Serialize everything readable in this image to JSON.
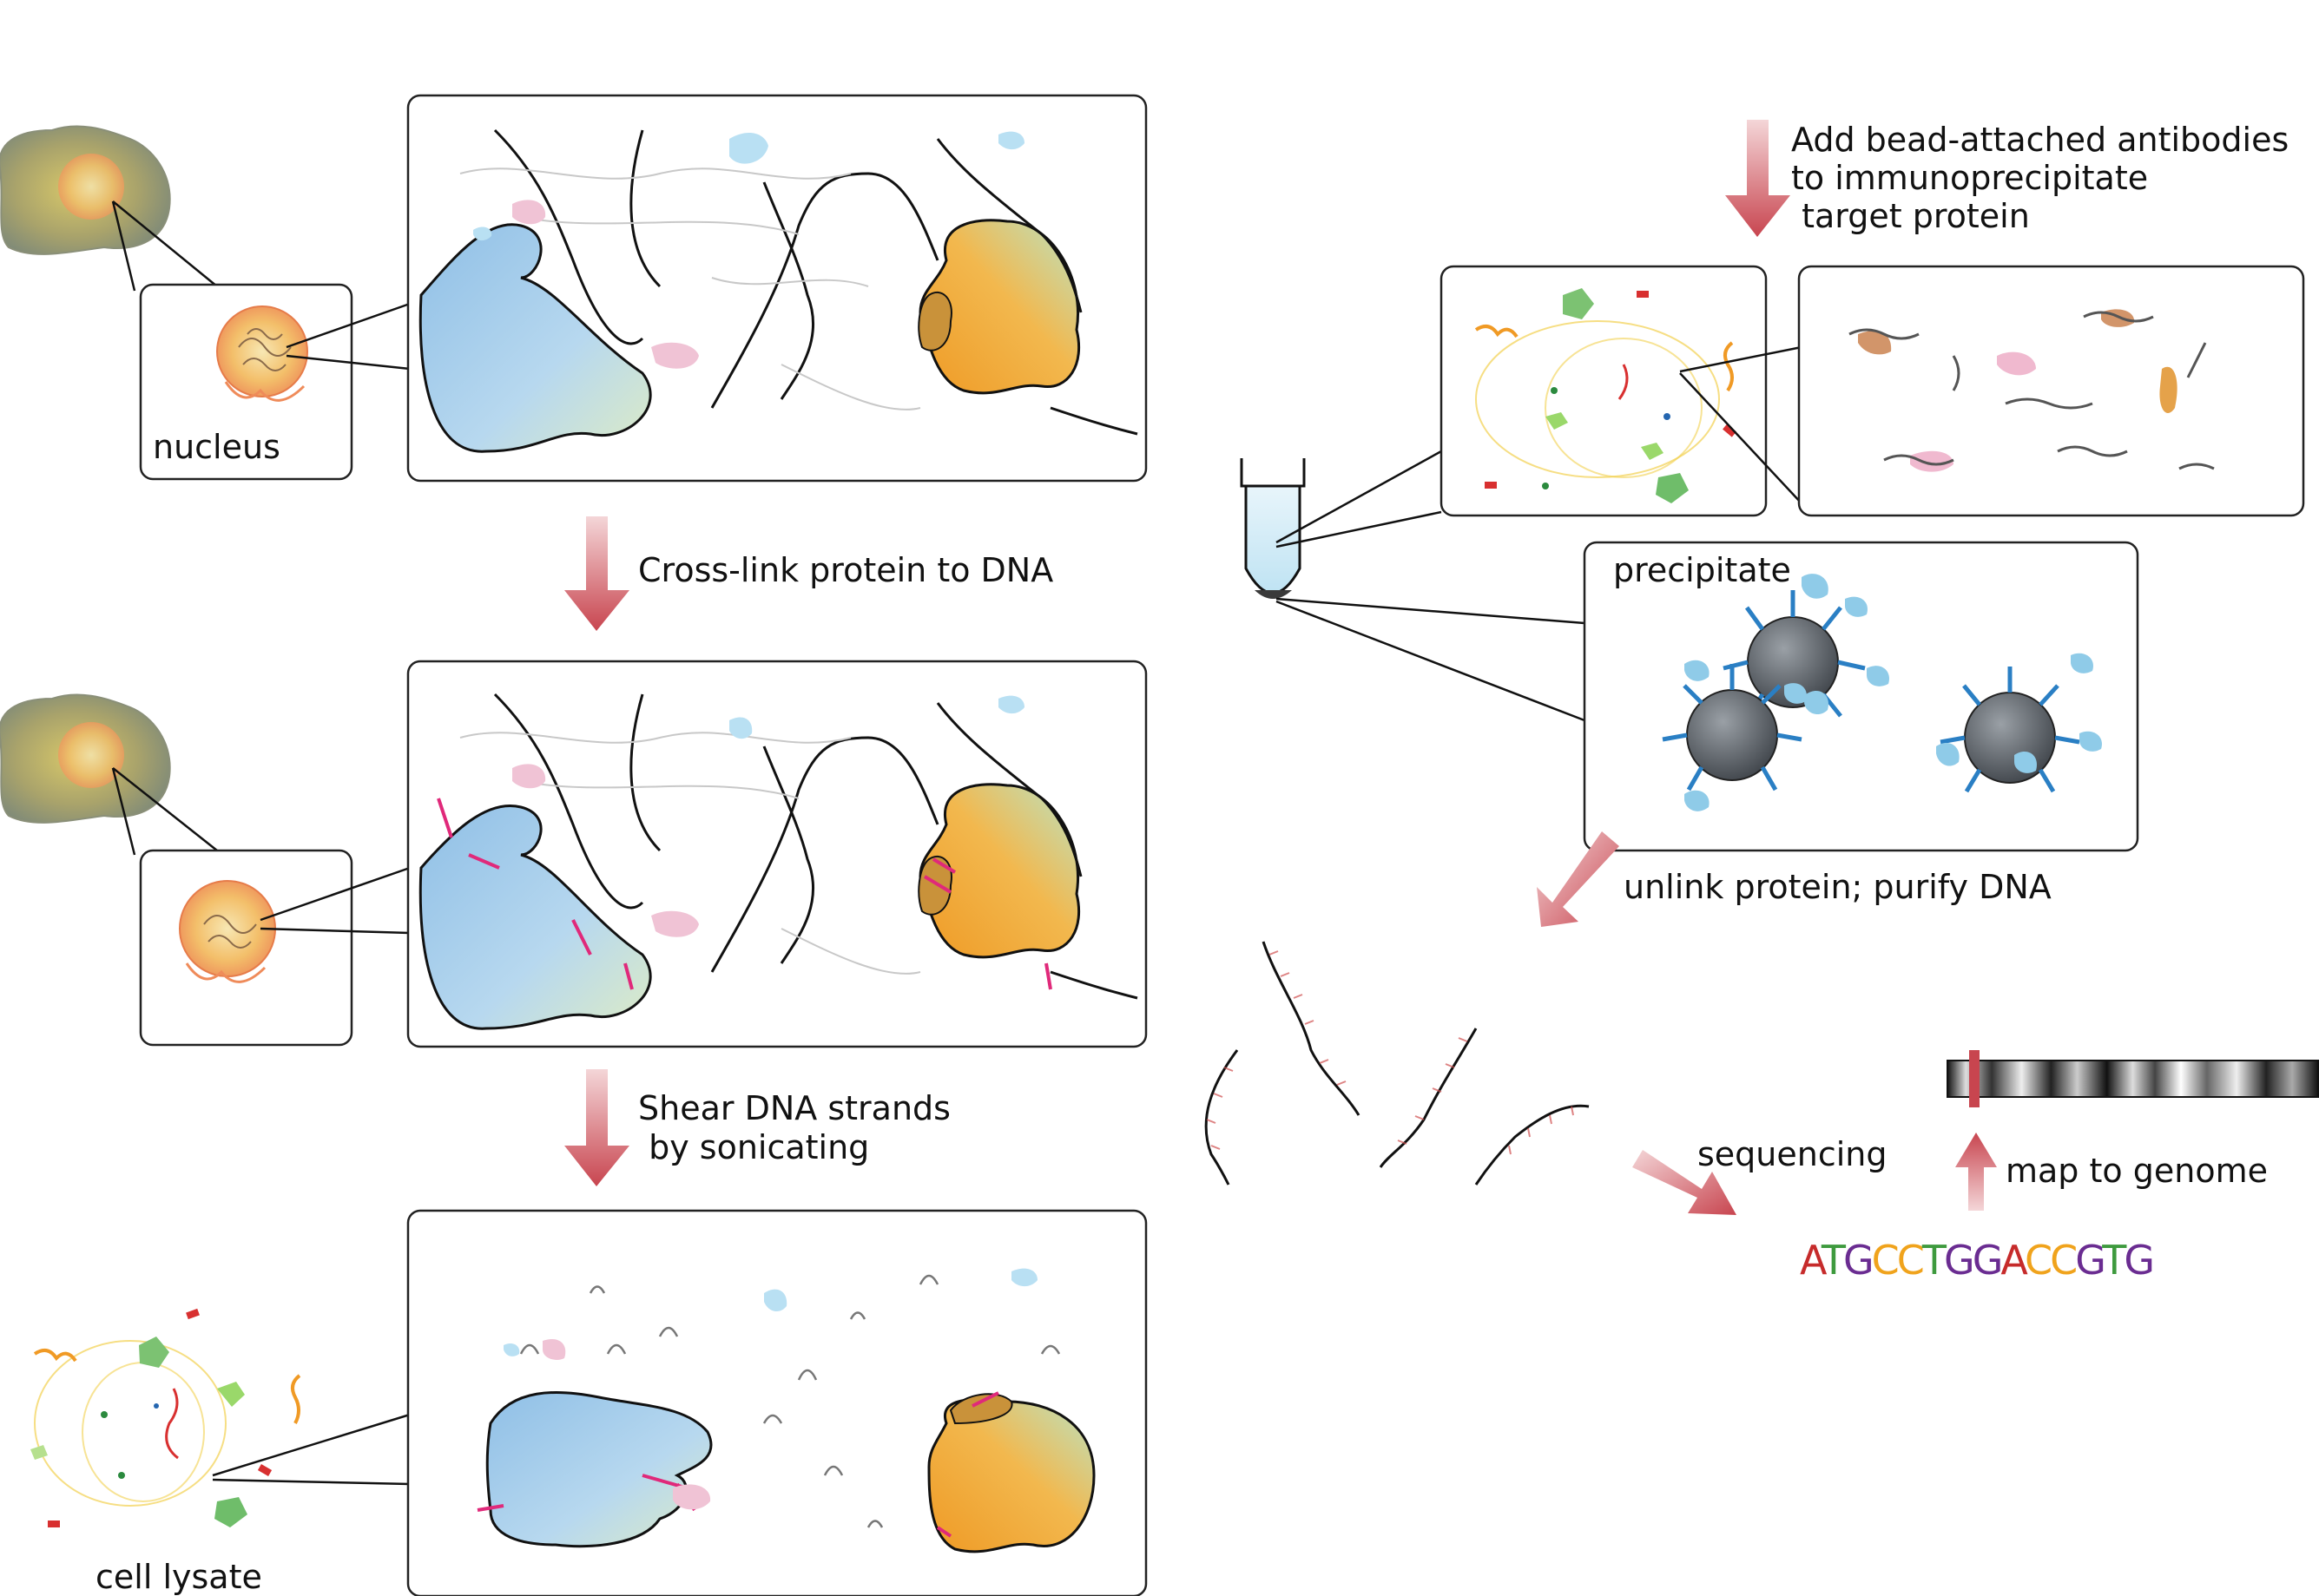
{
  "labels": {
    "nucleus": "nucleus",
    "crosslink": "Cross-link protein to DNA",
    "shear_line1": "Shear DNA strands",
    "shear_line2": " by sonicating",
    "cell_lysate": "cell lysate",
    "add_line1": "Add bead-attached antibodies",
    "add_line2": "to immunoprecipitate",
    "add_line3": " target protein",
    "precipitate": "precipitate",
    "unlink": "unlink protein; purify DNA",
    "sequencing": "sequencing",
    "map": "map to genome"
  },
  "sequence": [
    {
      "ch": "A",
      "color": "#c62b2b"
    },
    {
      "ch": "T",
      "color": "#3e9a3e"
    },
    {
      "ch": "G",
      "color": "#6a2c91"
    },
    {
      "ch": "C",
      "color": "#f0a31c"
    },
    {
      "ch": "C",
      "color": "#f0a31c"
    },
    {
      "ch": "T",
      "color": "#3e9a3e"
    },
    {
      "ch": "G",
      "color": "#6a2c91"
    },
    {
      "ch": "G",
      "color": "#6a2c91"
    },
    {
      "ch": "A",
      "color": "#c62b2b"
    },
    {
      "ch": "C",
      "color": "#f0a31c"
    },
    {
      "ch": "C",
      "color": "#f0a31c"
    },
    {
      "ch": "G",
      "color": "#6a2c91"
    },
    {
      "ch": "T",
      "color": "#3e9a3e"
    },
    {
      "ch": "G",
      "color": "#6a2c91"
    }
  ],
  "colors": {
    "arrow": "#c8454f",
    "protein_blue": "#a9cdea",
    "protein_orange": "#f0a83a",
    "crosslink": "#e0297a",
    "bead": "#5a5f66",
    "antibody": "#2a7fc4"
  }
}
